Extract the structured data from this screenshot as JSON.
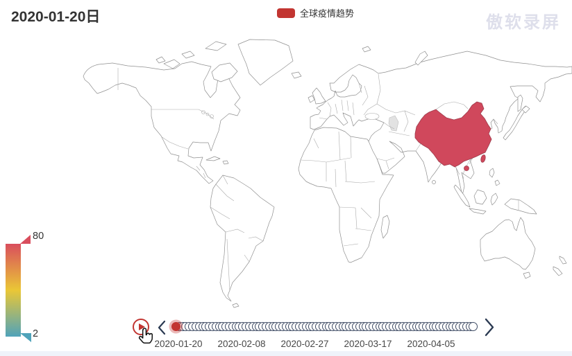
{
  "header": {
    "title": "2020-01-20日",
    "legend": {
      "label": "全球疫情趋势",
      "swatch_color": "#c23531"
    },
    "watermark": "傲软录屏"
  },
  "visual_map": {
    "max_label": "80",
    "min_label": "2",
    "gradient": [
      "#d94e5d",
      "#eac736",
      "#50a3ba"
    ]
  },
  "map": {
    "highlight_country": "China",
    "highlight_color": "#d0485c",
    "land_fill": "#ffffff",
    "border_color": "#8f8f8f"
  },
  "timeline": {
    "current_date": "2020-01-20",
    "current_index": 0,
    "tick_count": 90,
    "labels": [
      "2020-01-20",
      "2020-02-08",
      "2020-02-27",
      "2020-03-17",
      "2020-04-05"
    ],
    "checkpoint_color": "#c23531",
    "control_color": "#c23531",
    "icons": {
      "play": "▶",
      "prev": "‹",
      "next": "›"
    }
  },
  "chart_data": {
    "type": "heatmap",
    "subtype": "choropleth-world-map-with-timeline",
    "title": "2020-01-20日",
    "legend_entries": [
      "全球疫情趋势"
    ],
    "legend_position": "top-center",
    "visual_map": {
      "min": 2,
      "max": 80,
      "colors_low_to_high": [
        "#50a3ba",
        "#eac736",
        "#d94e5d"
      ],
      "position": "bottom-left",
      "orientation": "vertical"
    },
    "series": [
      {
        "name": "全球疫情趋势",
        "data": [
          {
            "name": "China",
            "value": 80
          }
        ],
        "note": "only China is colored (deep red, at/near max); all other countries have no data (white)"
      }
    ],
    "timeline": {
      "current": "2020-01-20",
      "visible_tick_labels": [
        "2020-01-20",
        "2020-02-08",
        "2020-02-27",
        "2020-03-17",
        "2020-04-05"
      ],
      "position": "bottom"
    }
  }
}
